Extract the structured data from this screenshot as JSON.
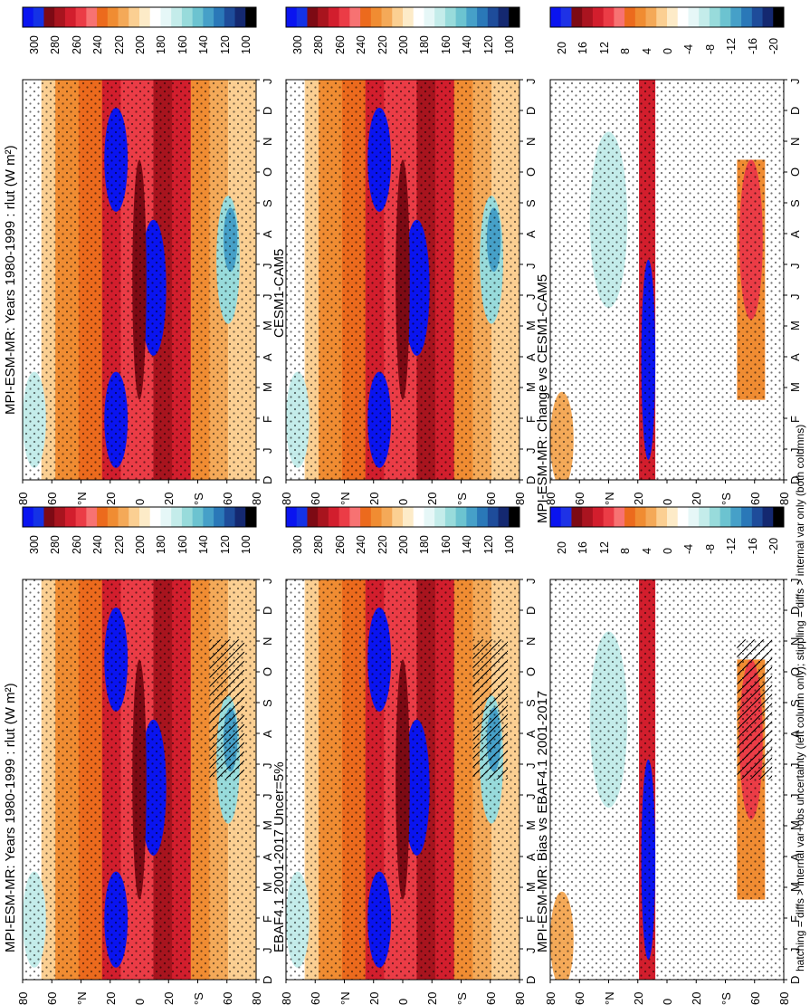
{
  "figure": {
    "footnote": "hatching = diffs > internal var+obs uncertainty (left column only); stippling = diffs > internal var only (both columns)",
    "months": [
      "D",
      "J",
      "F",
      "M",
      "A",
      "M",
      "J",
      "J",
      "A",
      "S",
      "O",
      "N",
      "D",
      "J"
    ],
    "lat_labels": [
      "80",
      "60",
      "°N",
      "20",
      "0",
      "20",
      "°S",
      "60",
      "80"
    ],
    "abs_colorbar_labels": [
      "300",
      "280",
      "260",
      "240",
      "220",
      "200",
      "180",
      "160",
      "140",
      "120",
      "100"
    ],
    "diff_colorbar_labels": [
      "20",
      "16",
      "12",
      "8",
      "4",
      "0",
      "-4",
      "-8",
      "-12",
      "-16",
      "-20"
    ],
    "abs_colors": [
      "#0a14f0",
      "#1432e6",
      "#7d0a14",
      "#a8141e",
      "#d21e2d",
      "#eb3c46",
      "#f77272",
      "#ec6a1d",
      "#f08c32",
      "#f4a958",
      "#fbcf92",
      "#fdebc8",
      "#ffffff",
      "#e6f7f7",
      "#c4ecea",
      "#98dbdb",
      "#6cc3d0",
      "#46a0c8",
      "#2a78b8",
      "#1e4c9a",
      "#142870",
      "#000000"
    ],
    "diff_colors": [
      "#0a14f0",
      "#1e32e6",
      "#7d0a14",
      "#aa1420",
      "#d21e2d",
      "#eb3c46",
      "#f77272",
      "#ec6a1d",
      "#f08c32",
      "#f4a958",
      "#fbcf92",
      "#fdebc8",
      "#ffffff",
      "#e6f7f7",
      "#c4ecea",
      "#98dbdb",
      "#6cc3d0",
      "#46a0c8",
      "#2a78b8",
      "#1e4c9a",
      "#142870",
      "#000000"
    ]
  },
  "chart_data": [
    {
      "type": "heatmap",
      "title": "MPI-ESM-MR: Years 1980-1999 : rlut (W m²)",
      "x": "months (Dec–Jan, 13 months)",
      "y": "latitude (90S–90N)",
      "units": "W m-2",
      "colorbar_range": [
        100,
        300
      ],
      "annotations": "stippling and hatching present"
    },
    {
      "type": "heatmap",
      "title": "MPI-ESM-MR: Years 1980-1999 : rlut (W m²)",
      "x": "months",
      "y": "latitude",
      "units": "W m-2",
      "colorbar_range": [
        100,
        300
      ],
      "annotations": "stippling"
    },
    {
      "type": "heatmap",
      "title": "EBAF4.1 2001-2017 Uncer=5%",
      "x": "months",
      "y": "latitude",
      "units": "W m-2",
      "colorbar_range": [
        100,
        300
      ]
    },
    {
      "type": "heatmap",
      "title": "CESM1-CAM5",
      "x": "months",
      "y": "latitude",
      "units": "W m-2",
      "colorbar_range": [
        100,
        300
      ]
    },
    {
      "type": "heatmap",
      "title": "MPI-ESM-MR: Bias vs EBAF4.1 2001-2017",
      "x": "months",
      "y": "latitude",
      "units": "W m-2",
      "colorbar_range": [
        -20,
        20
      ],
      "annotations": "stippling and hatching present"
    },
    {
      "type": "heatmap",
      "title": "MPI-ESM-MR: Change vs CESM1-CAM5",
      "x": "months",
      "y": "latitude",
      "units": "W m-2",
      "colorbar_range": [
        -20,
        20
      ],
      "annotations": "stippling present"
    }
  ]
}
